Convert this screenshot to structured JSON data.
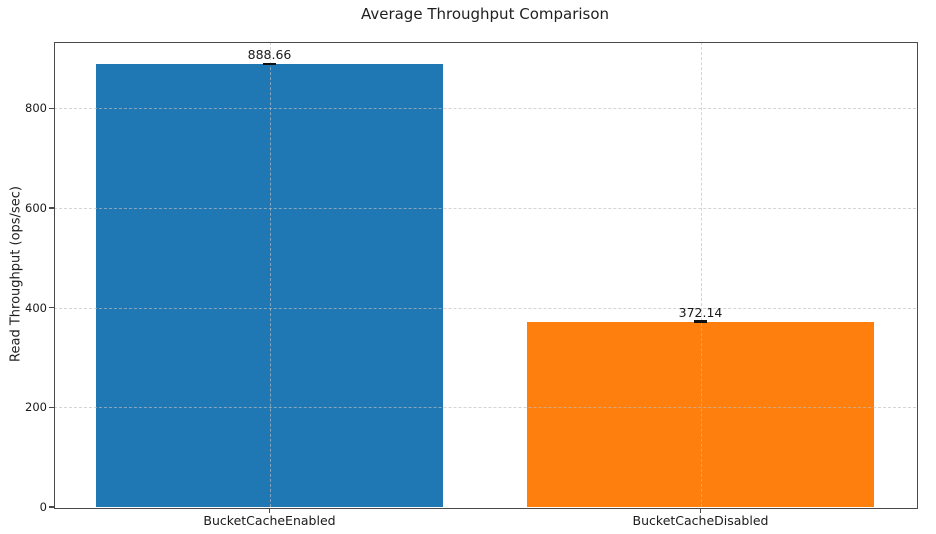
{
  "chart_data": {
    "type": "bar",
    "title": "Average Throughput Comparison",
    "xlabel": "",
    "ylabel": "Read Throughput (ops/sec)",
    "categories": [
      "BucketCacheEnabled",
      "BucketCacheDisabled"
    ],
    "values": [
      888.66,
      372.14
    ],
    "value_labels": [
      "888.66",
      "372.14"
    ],
    "bar_colors": [
      "#1f77b4",
      "#ff7f0e"
    ],
    "error_caps_visible": true,
    "ylim": [
      0,
      933
    ],
    "yticks": [
      0,
      200,
      400,
      600,
      800
    ],
    "grid": {
      "visible": true,
      "linestyle": "dashed",
      "axes": "both",
      "drawn_above_bars": true
    },
    "legend": "none",
    "spine_color": "#4a4a4a",
    "background_color": "#ffffff"
  }
}
